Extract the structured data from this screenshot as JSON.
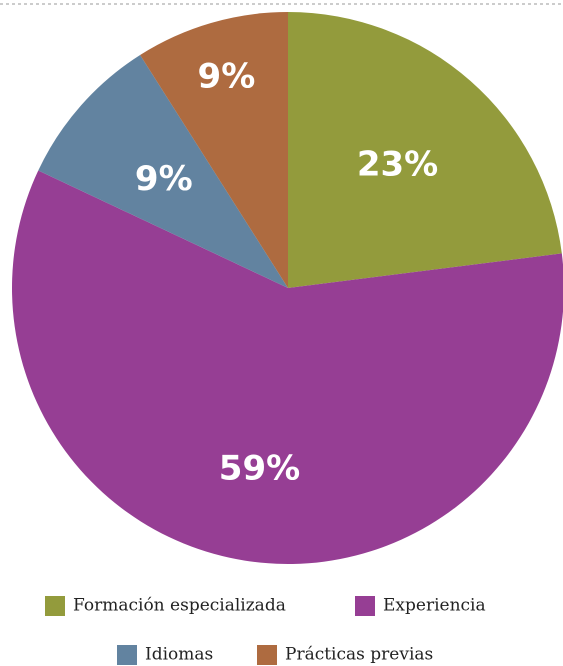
{
  "chart_data": {
    "type": "pie",
    "categories": [
      "Formación especializada",
      "Experiencia",
      "Idiomas",
      "Prácticas previas"
    ],
    "values": [
      23,
      59,
      9,
      9
    ],
    "value_labels": [
      "23%",
      "59%",
      "9%",
      "9%"
    ],
    "colors": [
      "#939b3c",
      "#963e94",
      "#6283a0",
      "#ae6b40"
    ]
  }
}
